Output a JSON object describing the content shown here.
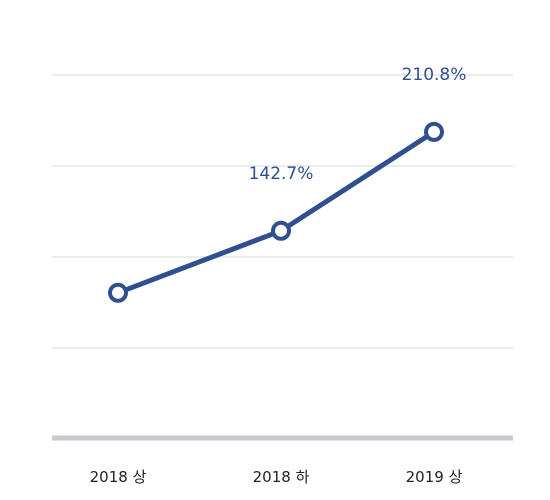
{
  "chart_data": {
    "type": "line",
    "categories": [
      "2018 상",
      "2018 하",
      "2019 상"
    ],
    "series": [
      {
        "values": [
          100,
          142.7,
          210.8
        ],
        "data_labels": [
          "",
          "142.7%",
          "210.8%"
        ]
      }
    ],
    "ylim": [
      0,
      250
    ],
    "grid": true,
    "legend": "none",
    "colors": {
      "series": "#2f4f8f",
      "data_label": "#2f4f8f",
      "grid": "#d9d9d9",
      "baseline": "#c9c9d1"
    }
  }
}
